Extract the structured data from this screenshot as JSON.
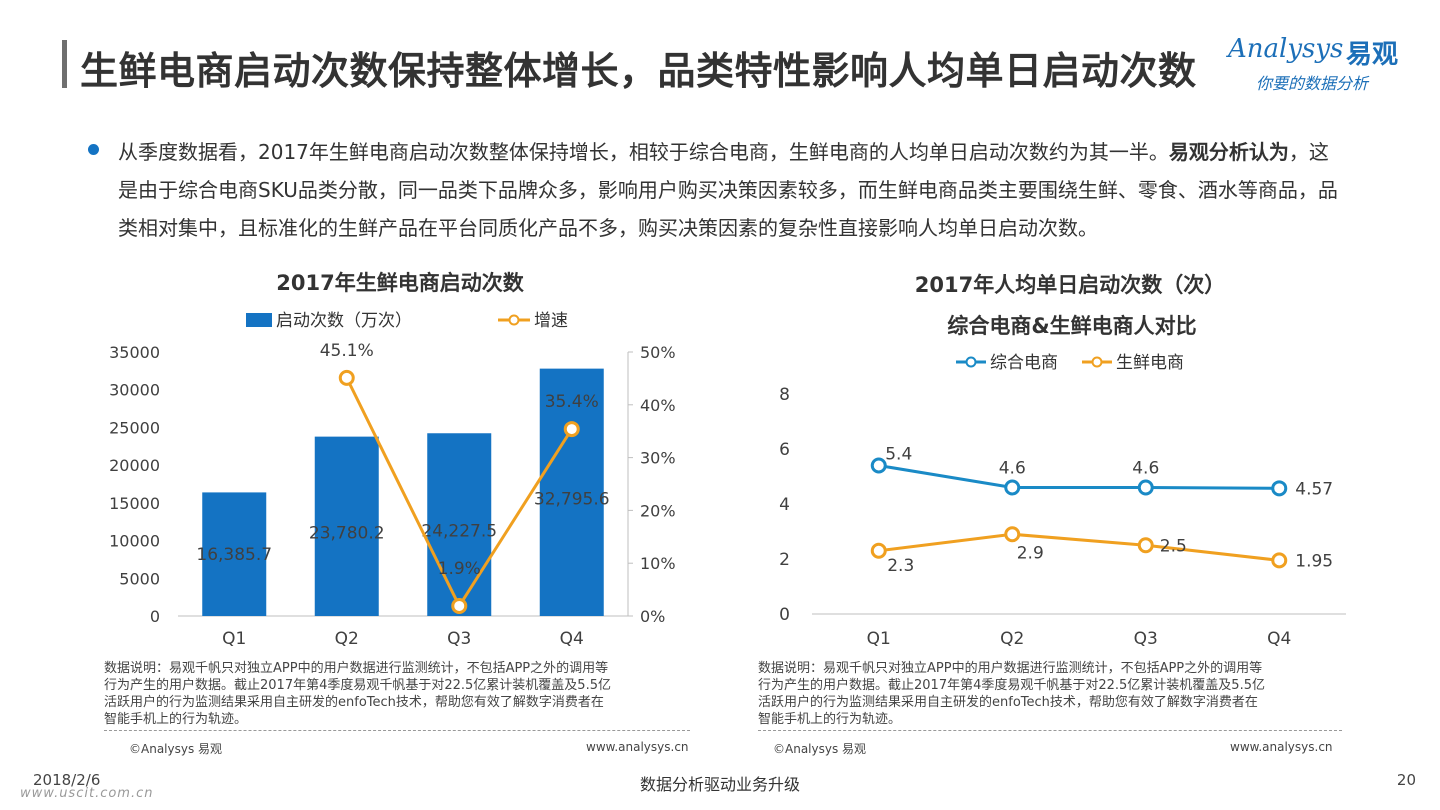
{
  "title": "生鲜电商启动次数保持整体增长，品类特性影响人均单日启动次数",
  "logo": {
    "brand": "Analysys",
    "brand_cn": "易观",
    "tagline": "你要的数据分析"
  },
  "paragraph": {
    "part1": "从季度数据看，2017年生鲜电商启动次数整体保持增长，相较于综合电商，生鲜电商的人均单日启动次数约为其一半。",
    "bold": "易观分析认为",
    "part2": "，这是由于综合电商SKU品类分散，同一品类下品牌众多，影响用户购买决策因素较多，而生鲜电商品类主要围绕生鲜、零食、酒水等商品，品类相对集中，且标准化的生鲜产品在平台同质化产品不多，购买决策因素的复杂性直接影响人均单日启动次数。"
  },
  "chart_data": [
    {
      "type": "bar",
      "title": "2017年生鲜电商启动次数",
      "categories": [
        "Q1",
        "Q2",
        "Q3",
        "Q4"
      ],
      "series": [
        {
          "name": "启动次数（万次）",
          "kind": "bar",
          "axis": "left",
          "values": [
            16385.7,
            23780.2,
            24227.5,
            32795.6
          ],
          "labels": [
            "16,385.7",
            "23,780.2",
            "24,227.5",
            "32,795.6"
          ],
          "color": "#1473c3"
        },
        {
          "name": "增速",
          "kind": "line",
          "axis": "right",
          "values": [
            null,
            45.1,
            1.9,
            35.4
          ],
          "labels": [
            "",
            "45.1%",
            "1.9%",
            "35.4%"
          ],
          "color": "#f0a020"
        }
      ],
      "y_left": {
        "range": [
          0,
          35000
        ],
        "ticks": [
          "0",
          "5000",
          "10000",
          "15000",
          "20000",
          "25000",
          "30000",
          "35000"
        ]
      },
      "y_right": {
        "range": [
          0,
          50
        ],
        "ticks": [
          "0%",
          "10%",
          "20%",
          "30%",
          "40%",
          "50%"
        ]
      },
      "legend": "top"
    },
    {
      "type": "line",
      "title": "2017年人均单日启动次数（次）",
      "subtitle": "综合电商&生鲜电商人对比",
      "categories": [
        "Q1",
        "Q2",
        "Q3",
        "Q4"
      ],
      "series": [
        {
          "name": "综合电商",
          "values": [
            5.4,
            4.6,
            4.6,
            4.57
          ],
          "labels": [
            "5.4",
            "4.6",
            "4.6",
            "4.57"
          ],
          "color": "#1a8ac6"
        },
        {
          "name": "生鲜电商",
          "values": [
            2.3,
            2.9,
            2.5,
            1.95
          ],
          "labels": [
            "2.3",
            "2.9",
            "2.5",
            "1.95"
          ],
          "color": "#f0a020"
        }
      ],
      "y": {
        "range": [
          0,
          8
        ],
        "ticks": [
          "0",
          "2",
          "4",
          "6",
          "8"
        ]
      },
      "legend": "top"
    }
  ],
  "notes": {
    "left": "数据说明：易观千帆只对独立APP中的用户数据进行监测统计，不包括APP之外的调用等\n行为产生的用户数据。截止2017年第4季度易观千帆基于对22.5亿累计装机覆盖及5.5亿\n活跃用户的行为监测结果采用自主研发的enfoTech技术，帮助您有效了解数字消费者在\n智能手机上的行为轨迹。",
    "right": "数据说明：易观千帆只对独立APP中的用户数据进行监测统计，不包括APP之外的调用等\n行为产生的用户数据。截止2017年第4季度易观千帆基于对22.5亿累计装机覆盖及5.5亿\n活跃用户的行为监测结果采用自主研发的enfoTech技术，帮助您有效了解数字消费者在\n智能手机上的行为轨迹。",
    "copyright": "©Analysys 易观",
    "website": "www.analysys.cn"
  },
  "footer": {
    "date": "2018/2/6",
    "slogan": "数据分析驱动业务升级",
    "page": "20",
    "site": "www.uscit.com.cn"
  }
}
